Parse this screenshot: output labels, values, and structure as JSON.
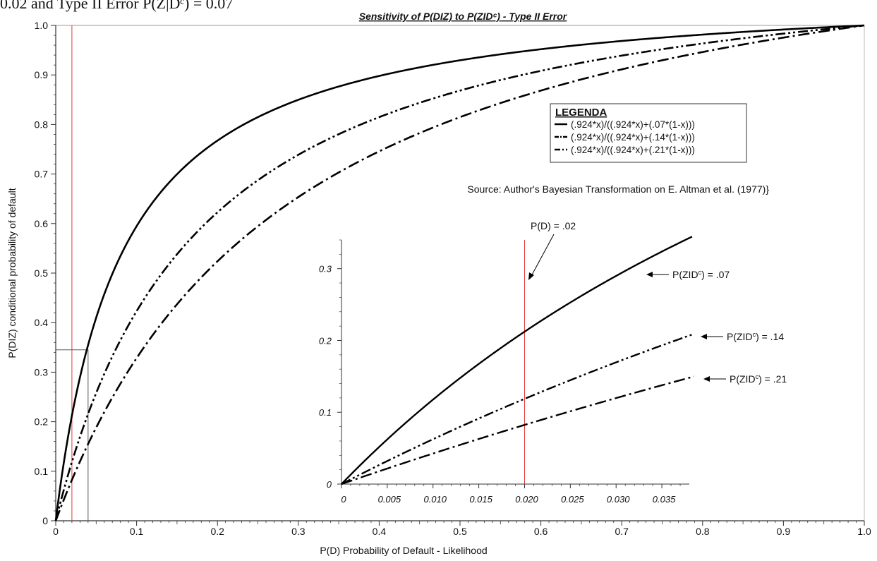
{
  "page": {
    "header_fragment": "0.02 and Type II Error P(Z|Dᶜ) = 0.07"
  },
  "chart_data": [
    {
      "id": "main",
      "type": "line",
      "title": "Sensitivity of P(DIZ) to P(ZIDᶜ) - Type II Error",
      "xlabel": "P(D) Probability of Default - Likelihood",
      "ylabel": "P(DIZ) conditional probability of default",
      "xlim": [
        0,
        1
      ],
      "ylim": [
        0,
        1
      ],
      "x_ticks": [
        "0",
        "0.1",
        "0.2",
        "0.3",
        "0.4",
        "0.5",
        "0.6",
        "0.7",
        "0.8",
        "0.9",
        "1.0"
      ],
      "y_ticks": [
        "0",
        "0.1",
        "0.2",
        "0.3",
        "0.4",
        "0.5",
        "0.6",
        "0.7",
        "0.8",
        "0.9",
        "1.0"
      ],
      "grid": false,
      "legend_title": "LEGENDA",
      "legend_position": "upper-right",
      "source_note": "Source: Author's Bayesian Transformation on E. Altman et al. (1977)}",
      "series": [
        {
          "name": "(.924*x)/((.924*x)+(.07*(1-x)))",
          "style": "solid",
          "numerator": 0.924,
          "type2_error": 0.07
        },
        {
          "name": "(.924*x)/((.924*x)+(.14*(1-x)))",
          "style": "dash-dot-dot",
          "numerator": 0.924,
          "type2_error": 0.14
        },
        {
          "name": "(.924*x)/((.924*x)+(.21*(1-x)))",
          "style": "dash-dot",
          "numerator": 0.924,
          "type2_error": 0.21
        }
      ],
      "reference_line": {
        "x": 0.02,
        "color": "#e23a3a"
      },
      "inset_region": {
        "x": [
          0,
          0.04
        ],
        "y": [
          0,
          0.345
        ]
      }
    },
    {
      "id": "inset",
      "type": "line",
      "xlim": [
        0,
        0.038
      ],
      "ylim": [
        0,
        0.34
      ],
      "x_ticks": [
        "0",
        "0.005",
        "0.010",
        "0.015",
        "0.020",
        "0.025",
        "0.030",
        "0.035"
      ],
      "y_ticks": [
        "0",
        "0.1",
        "0.2",
        "0.3"
      ],
      "reference_line": {
        "x": 0.02,
        "label": "P(D) = .02",
        "color": "#e23a3a"
      },
      "annotations": [
        {
          "text_main": "P(ZID",
          "text_sup": "c",
          "text_tail": ") = .07",
          "series_index": 0
        },
        {
          "text_main": "P(ZID",
          "text_sup": "c",
          "text_tail": ") = .14",
          "series_index": 1
        },
        {
          "text_main": "P(ZID",
          "text_sup": "c",
          "text_tail": ") = .21",
          "series_index": 2
        }
      ]
    }
  ]
}
